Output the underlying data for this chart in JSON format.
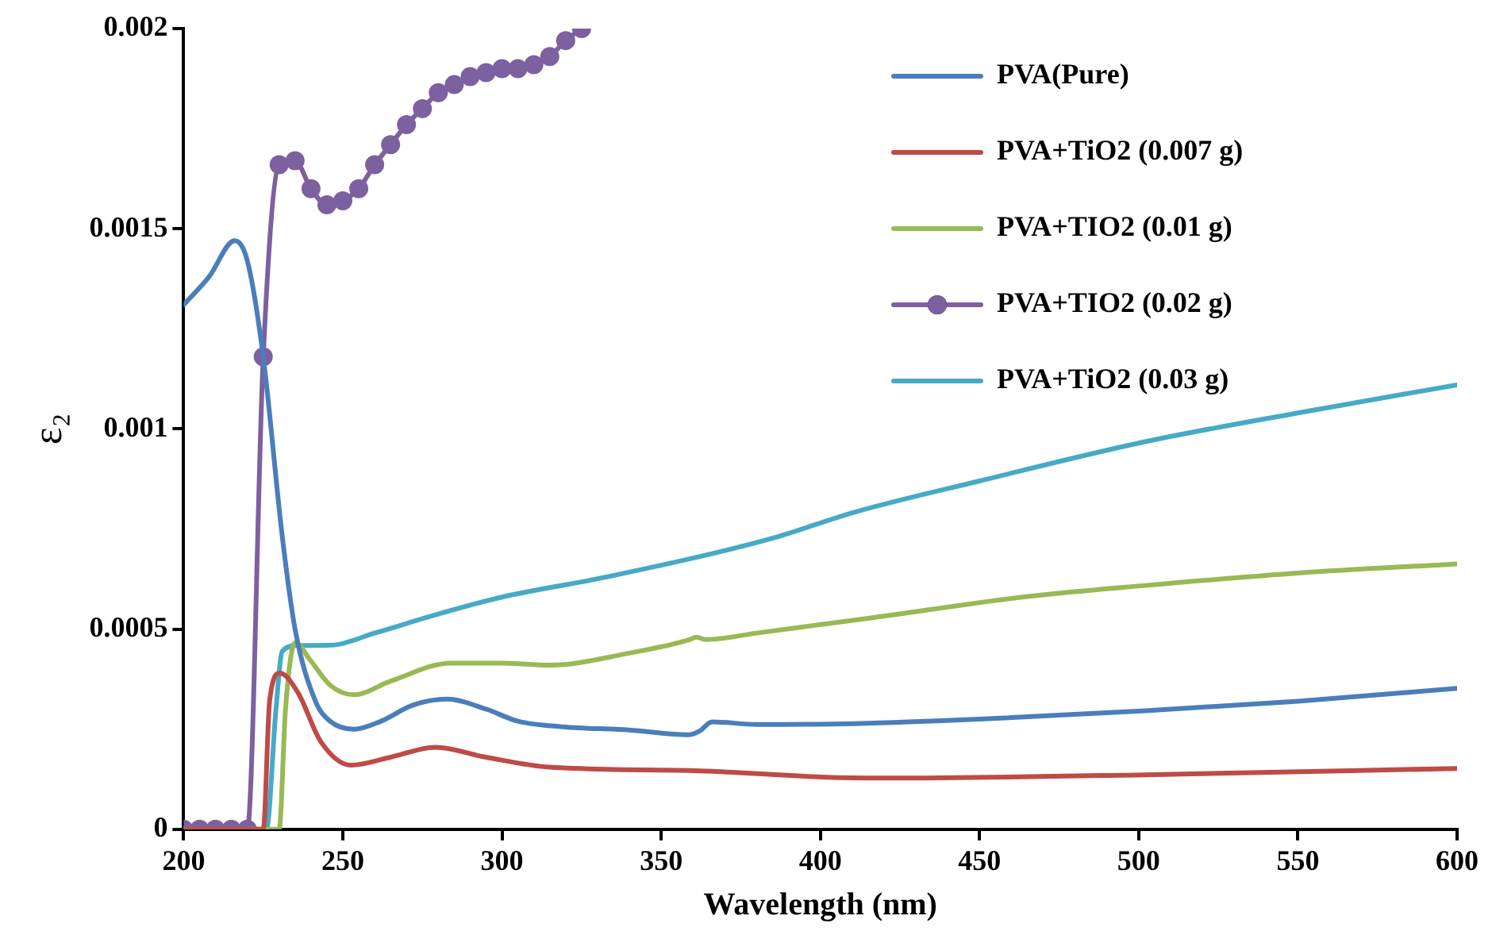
{
  "chart_data": {
    "type": "line",
    "xlabel": "Wavelength (nm)",
    "ylabel": "ε₂",
    "xlim": [
      200,
      600
    ],
    "xticks": [
      200,
      250,
      300,
      350,
      400,
      450,
      500,
      550,
      600
    ],
    "ylim": [
      0,
      0.002
    ],
    "yticks": [
      0,
      0.0005,
      0.001,
      0.0015,
      0.002
    ],
    "grid": false,
    "legend": "top right",
    "series": [
      {
        "name": "PVA(Pure)",
        "color": "#4a7ebb",
        "marker": "none",
        "x": [
          200,
          208,
          216,
          220,
          225,
          231,
          235,
          241.4,
          246,
          253.5,
          262,
          272,
          282.8,
          295,
          305,
          319,
          340,
          358.7,
          362,
          366,
          380,
          410.7,
          450,
          502,
          550,
          600
        ],
        "values": [
          0.00131,
          0.00138,
          0.00147,
          0.00142,
          0.00118,
          0.00073,
          0.0005,
          0.00032,
          0.00027,
          0.00025,
          0.00027,
          0.00031,
          0.000325,
          0.0003,
          0.00027,
          0.000256,
          0.000248,
          0.000236,
          0.000245,
          0.000268,
          0.000262,
          0.000264,
          0.000275,
          0.000296,
          0.00032,
          0.000352
        ]
      },
      {
        "name": "PVA+TiO2 (0.007 g)",
        "color": "#be4b48",
        "marker": "none",
        "x": [
          200,
          225,
          227,
          230.2,
          236,
          243,
          252.6,
          265,
          279,
          295,
          315,
          358.7,
          366,
          401.8,
          420,
          502,
          600
        ],
        "values": [
          0,
          0,
          0.00032,
          0.00039,
          0.00034,
          0.00022,
          0.00016,
          0.00018,
          0.000205,
          0.00018,
          0.000155,
          0.000147,
          0.000145,
          0.00013,
          0.000128,
          0.000136,
          0.000152
        ]
      },
      {
        "name": "PVA+TIO2 (0.01 g)",
        "color": "#98b954",
        "marker": "none",
        "x": [
          200,
          230,
          232,
          235,
          240,
          246,
          253.5,
          265,
          284,
          300,
          315,
          340,
          358.7,
          361,
          364,
          380,
          416,
          465.6,
          502,
          550,
          600
        ],
        "values": [
          0,
          0,
          0.0003,
          0.000466,
          0.00042,
          0.00036,
          0.000336,
          0.00037,
          0.000415,
          0.000415,
          0.00041,
          0.00044,
          0.000473,
          0.00048,
          0.000474,
          0.00049,
          0.000528,
          0.000582,
          0.000609,
          0.00064,
          0.000663
        ]
      },
      {
        "name": "PVA+TIO2 (0.02 g)",
        "color": "#7d60a0",
        "marker": "circle",
        "x": [
          200,
          205,
          210,
          215,
          220,
          225,
          230,
          235,
          240,
          245,
          250,
          255,
          260,
          265,
          270,
          275,
          280,
          285,
          290,
          295,
          300,
          305,
          310,
          315,
          320,
          325
        ],
        "values": [
          0,
          0,
          0,
          0,
          0,
          0.00118,
          0.00166,
          0.00167,
          0.0016,
          0.00156,
          0.00157,
          0.0016,
          0.00166,
          0.00171,
          0.00176,
          0.0018,
          0.00184,
          0.00186,
          0.00188,
          0.00189,
          0.0019,
          0.0019,
          0.00191,
          0.00193,
          0.00197,
          0.002
        ]
      },
      {
        "name": "PVA+TiO2 (0.03 g)",
        "color": "#46aac5",
        "marker": "none",
        "x": [
          200,
          226,
          229,
          231,
          236,
          246.5,
          260,
          281,
          300,
          332.8,
          384.5,
          410.7,
          450,
          502,
          550,
          600
        ],
        "values": [
          0,
          0,
          0.0003,
          0.000445,
          0.000459,
          0.00046,
          0.00049,
          0.00054,
          0.00058,
          0.00063,
          0.000726,
          0.000792,
          0.00087,
          0.000968,
          0.00104,
          0.00111
        ]
      }
    ]
  }
}
